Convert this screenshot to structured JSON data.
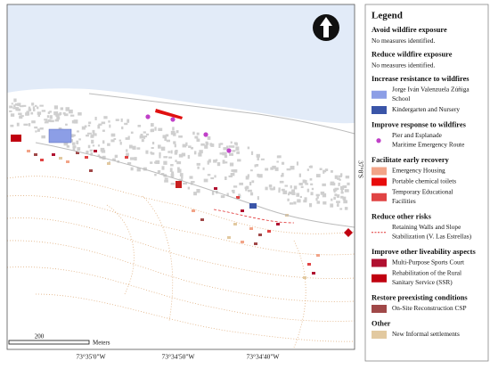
{
  "map": {
    "coordinates": {
      "x_labels": [
        "73°35'0\"W",
        "73°34'50\"W",
        "73°34'40\"W"
      ],
      "y_label": "37°8'S"
    },
    "scale": {
      "value": "200",
      "unit": "Meters"
    }
  },
  "legend": {
    "title": "Legend",
    "sections": [
      {
        "heading": "Avoid wildfire exposure",
        "note": "No measures identified."
      },
      {
        "heading": "Reduce wildfire exposure",
        "note": "No measures identified."
      },
      {
        "heading": "Increase resistance to wildfires",
        "items": [
          {
            "symbol": "box",
            "color": "#8c9ee6",
            "lines": [
              "Jorge Iván Valenzuela Zúñiga",
              "School"
            ]
          },
          {
            "symbol": "box",
            "color": "#3a55a8",
            "lines": [
              "Kindergarten and Nursery"
            ]
          }
        ]
      },
      {
        "heading": "Improve response to wildfires",
        "items": [
          {
            "symbol": "dot",
            "color": "#c040c8",
            "lines": [
              "Pier and Esplanade",
              "Maritime Emergency Route"
            ]
          }
        ]
      },
      {
        "heading": "Facilitate early recovery",
        "items": [
          {
            "symbol": "box",
            "color": "#f2a488",
            "lines": [
              "Emergency Housing"
            ]
          },
          {
            "symbol": "box",
            "color": "#e80c0c",
            "lines": [
              "Portable chemical toilets"
            ]
          },
          {
            "symbol": "box",
            "color": "#e04444",
            "lines": [
              "Temporary Educational",
              "Facilities"
            ]
          }
        ]
      },
      {
        "heading": "Reduce other risks",
        "items": [
          {
            "symbol": "dash",
            "color": "#e03030",
            "lines": [
              "Retaining Walls and Slope",
              "Stabilization (V. Las Estrellas)"
            ]
          }
        ]
      },
      {
        "heading": "Improve other liveability aspects",
        "items": [
          {
            "symbol": "box",
            "color": "#b01030",
            "lines": [
              "Multi-Purpose Sports Court"
            ]
          },
          {
            "symbol": "box",
            "color": "#c00010",
            "lines": [
              "Rehabilitation of the Rural",
              "Sanitary Service (SSR)"
            ]
          }
        ]
      },
      {
        "heading": "Restore preexisting conditions",
        "items": [
          {
            "symbol": "box",
            "color": "#a04848",
            "lines": [
              "On-Site Reconstruction CSP"
            ]
          }
        ]
      },
      {
        "heading": "Other",
        "items": [
          {
            "symbol": "box",
            "color": "#e2c9a0",
            "lines": [
              "New Informal settlements"
            ]
          }
        ]
      }
    ]
  }
}
